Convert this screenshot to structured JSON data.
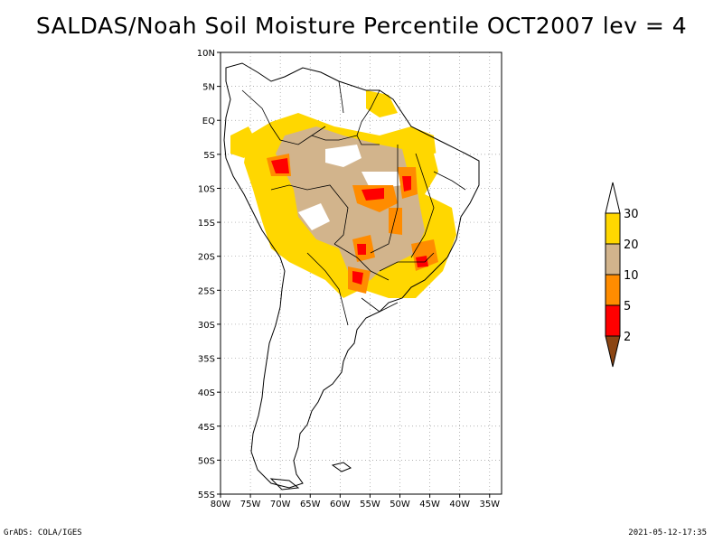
{
  "title": "SALDAS/Noah Soil Moisture Percentile OCT2007 lev = 4",
  "map": {
    "lat_labels": [
      "10N",
      "5N",
      "EQ",
      "5S",
      "10S",
      "15S",
      "20S",
      "25S",
      "30S",
      "35S",
      "40S",
      "45S",
      "50S",
      "55S"
    ],
    "lon_labels": [
      "80W",
      "75W",
      "70W",
      "65W",
      "60W",
      "55W",
      "50W",
      "45W",
      "40W",
      "35W"
    ],
    "lat_range": [
      10,
      -55
    ],
    "lon_range": [
      -80,
      -33
    ],
    "grid": "dotted",
    "colorbar": {
      "levels": [
        "2",
        "5",
        "10",
        "20",
        "30"
      ],
      "colors": [
        "#8b4513",
        "#ff0000",
        "#ff8c00",
        "#d2b48c",
        "#ffd700",
        "#ffffff"
      ]
    }
  },
  "footer": {
    "left": "GrADS: COLA/IGES",
    "right": "2021-05-12-17:35"
  }
}
